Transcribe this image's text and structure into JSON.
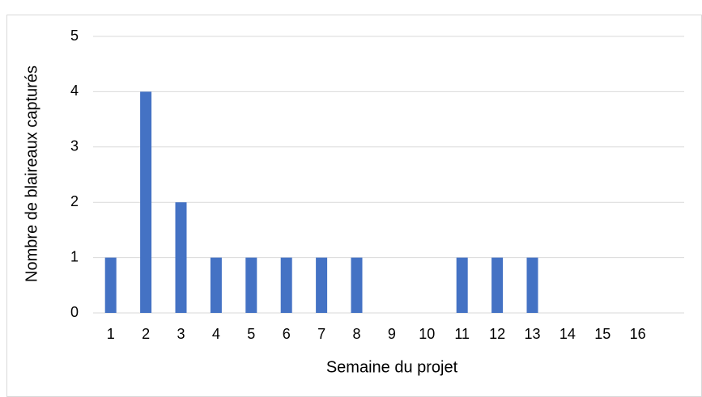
{
  "chart_data": {
    "type": "bar",
    "x_label": "Semaine du projet",
    "y_label": "Nombre de blaireaux capturés",
    "categories": [
      "1",
      "2",
      "3",
      "4",
      "5",
      "6",
      "7",
      "8",
      "9",
      "10",
      "11",
      "12",
      "13",
      "14",
      "15",
      "16"
    ],
    "values": [
      1,
      4,
      2,
      1,
      1,
      1,
      1,
      1,
      0,
      0,
      1,
      1,
      1,
      0,
      0,
      0
    ],
    "color": "#4472c4",
    "ylim": [
      0,
      5
    ],
    "yticks": [
      0,
      1,
      2,
      3,
      4,
      5
    ],
    "grid": true
  }
}
